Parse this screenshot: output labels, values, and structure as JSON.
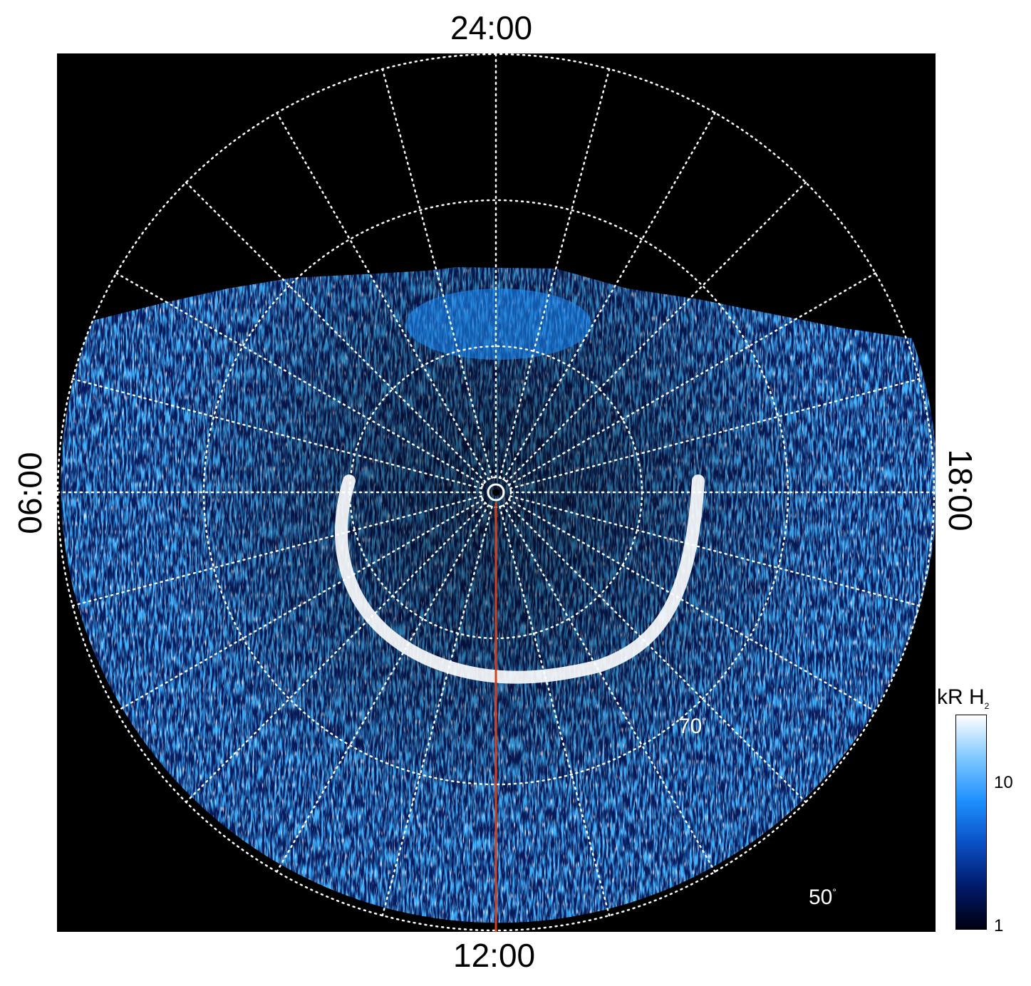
{
  "image": {
    "description_kind": "polar projection of auroral emission",
    "local_time_labels": {
      "top": "24:00",
      "bottom": "12:00",
      "left": "06:00",
      "right": "18:00"
    },
    "latitude_labels": {
      "lat_70": "70",
      "lat_50": "50",
      "degree_symbol": "°"
    },
    "colorbar": {
      "title_main": "kR H",
      "title_sub": "2",
      "tick_10": "10",
      "tick_1": "1",
      "scale": "log",
      "colors": [
        "#000010",
        "#001a6b",
        "#0a4fc4",
        "#1e90ff",
        "#7ec8ff",
        "#ffffff"
      ]
    },
    "colors": {
      "background": "#000000",
      "grid": "#ffffff",
      "meridian_line": "#d2421e",
      "emission_bright": "#ffffff",
      "emission_mid": "#1e90ff",
      "emission_dark": "#0a2a8a"
    }
  }
}
